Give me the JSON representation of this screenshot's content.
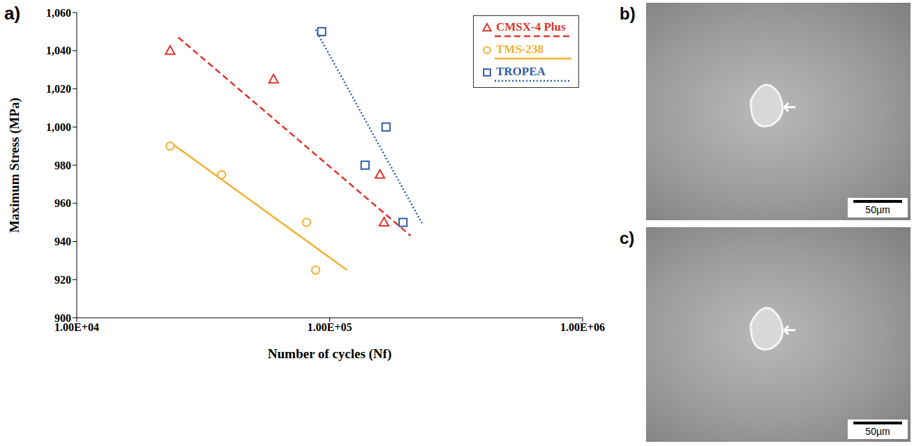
{
  "chart_data": {
    "type": "scatter",
    "panel_label": "a)",
    "x_label": "Number of cycles (Nf)",
    "y_label": "Maximum Stress (MPa)",
    "log": "x",
    "grid": false,
    "legend": "top-right",
    "xlim": [
      10000,
      1000000
    ],
    "xticks": [
      {
        "value": 10000,
        "label": "1.00E+04"
      },
      {
        "value": 100000,
        "label": "1.00E+05"
      },
      {
        "value": 1000000,
        "label": "1.00E+06"
      }
    ],
    "ylim": [
      900,
      1060
    ],
    "yticks": [
      900,
      920,
      940,
      960,
      980,
      {
        "value": 1000,
        "label": "1,000"
      },
      {
        "value": 1020,
        "label": "1,020"
      },
      {
        "value": 1040,
        "label": "1,040"
      },
      {
        "value": 1060,
        "label": "1,060"
      }
    ],
    "series": [
      {
        "name": "CMSX-4 Plus",
        "color": "#e0342b",
        "marker": "triangle",
        "x": [
          23400,
          60000,
          158000,
          164000
        ],
        "values": [
          1040,
          1025,
          975,
          950
        ],
        "trend": {
          "x": [
            25200,
            209000
          ],
          "values": [
            1047,
            943
          ],
          "line_style": "dashed"
        }
      },
      {
        "name": "TMS-238",
        "color": "#f2b02e",
        "marker": "circle",
        "x": [
          23400,
          37400,
          81000,
          88000
        ],
        "values": [
          990,
          975,
          950,
          925
        ],
        "trend": {
          "x": [
            23400,
            117000
          ],
          "values": [
            992,
            925
          ],
          "line_style": "solid"
        }
      },
      {
        "name": "TROPEA",
        "color": "#2f5ba8",
        "marker": "square",
        "x": [
          93000,
          167000,
          138000,
          195000
        ],
        "values": [
          1050,
          1000,
          980,
          950
        ],
        "trend": {
          "x": [
            88000,
            233000
          ],
          "values": [
            1051,
            949
          ],
          "line_style": "dotted"
        }
      }
    ]
  },
  "images": [
    {
      "panel_label": "b)",
      "scale_bar": "50µm"
    },
    {
      "panel_label": "c)",
      "scale_bar": "50µm"
    }
  ]
}
